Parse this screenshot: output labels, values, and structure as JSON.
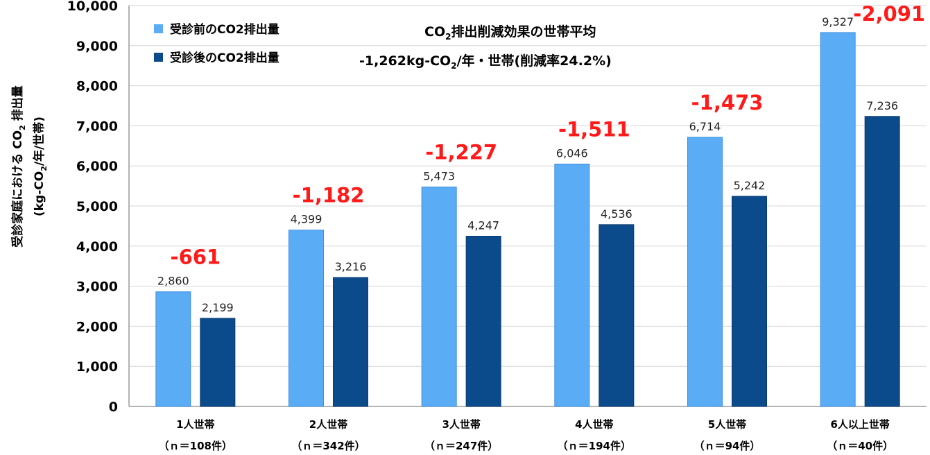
{
  "chart_data": {
    "type": "bar",
    "ylabel_line1": "受診家庭における CO",
    "ylabel_line1_sub": "2",
    "ylabel_line1_tail": " 排出量",
    "ylabel_line2": "(kg-CO",
    "ylabel_line2_sub": "2",
    "ylabel_line2_tail": "/年/世帯)",
    "ylim": [
      0,
      10000
    ],
    "yticks": [
      0,
      1000,
      2000,
      3000,
      4000,
      5000,
      6000,
      7000,
      8000,
      9000,
      10000
    ],
    "ytick_labels": [
      "0",
      "1,000",
      "2,000",
      "3,000",
      "4,000",
      "5,000",
      "6,000",
      "7,000",
      "8,000",
      "9,000",
      "10,000"
    ],
    "grid": true,
    "categories": [
      "1人世帯",
      "2人世帯",
      "3人世帯",
      "4人世帯",
      "5人世帯",
      "6人以上世帯"
    ],
    "category_sublabels": [
      "（ｎ＝108件）",
      "（ｎ＝342件）",
      "（ｎ＝247件）",
      "（ｎ＝194件）",
      "（ｎ＝94件）",
      "（ｎ＝40件）"
    ],
    "series": [
      {
        "name": "受診前のCO2排出量",
        "color": "#5aacf5",
        "values": [
          2860,
          4399,
          5473,
          6046,
          6714,
          9327
        ],
        "labels": [
          "2,860",
          "4,399",
          "5,473",
          "6,046",
          "6,714",
          "9,327"
        ]
      },
      {
        "name": "受診後のCO2排出量",
        "color": "#0b4b8c",
        "values": [
          2199,
          3216,
          4247,
          4536,
          5242,
          7236
        ],
        "labels": [
          "2,199",
          "3,216",
          "4,247",
          "4,536",
          "5,242",
          "7,236"
        ]
      }
    ],
    "differences": [
      "-661",
      "-1,182",
      "-1,227",
      "-1,511",
      "-1,473",
      "-2,091"
    ],
    "difference_color": "#ff1a1a",
    "legend_position": "top-left",
    "annotation": {
      "line1_pre": "CO",
      "line1_sub": "2",
      "line1_post": "排出削減効果の世帯平均",
      "line2_pre": "-1,262kg-CO",
      "line2_sub": "2",
      "line2_post": "/年・世帯(削減率24.2%)"
    }
  }
}
